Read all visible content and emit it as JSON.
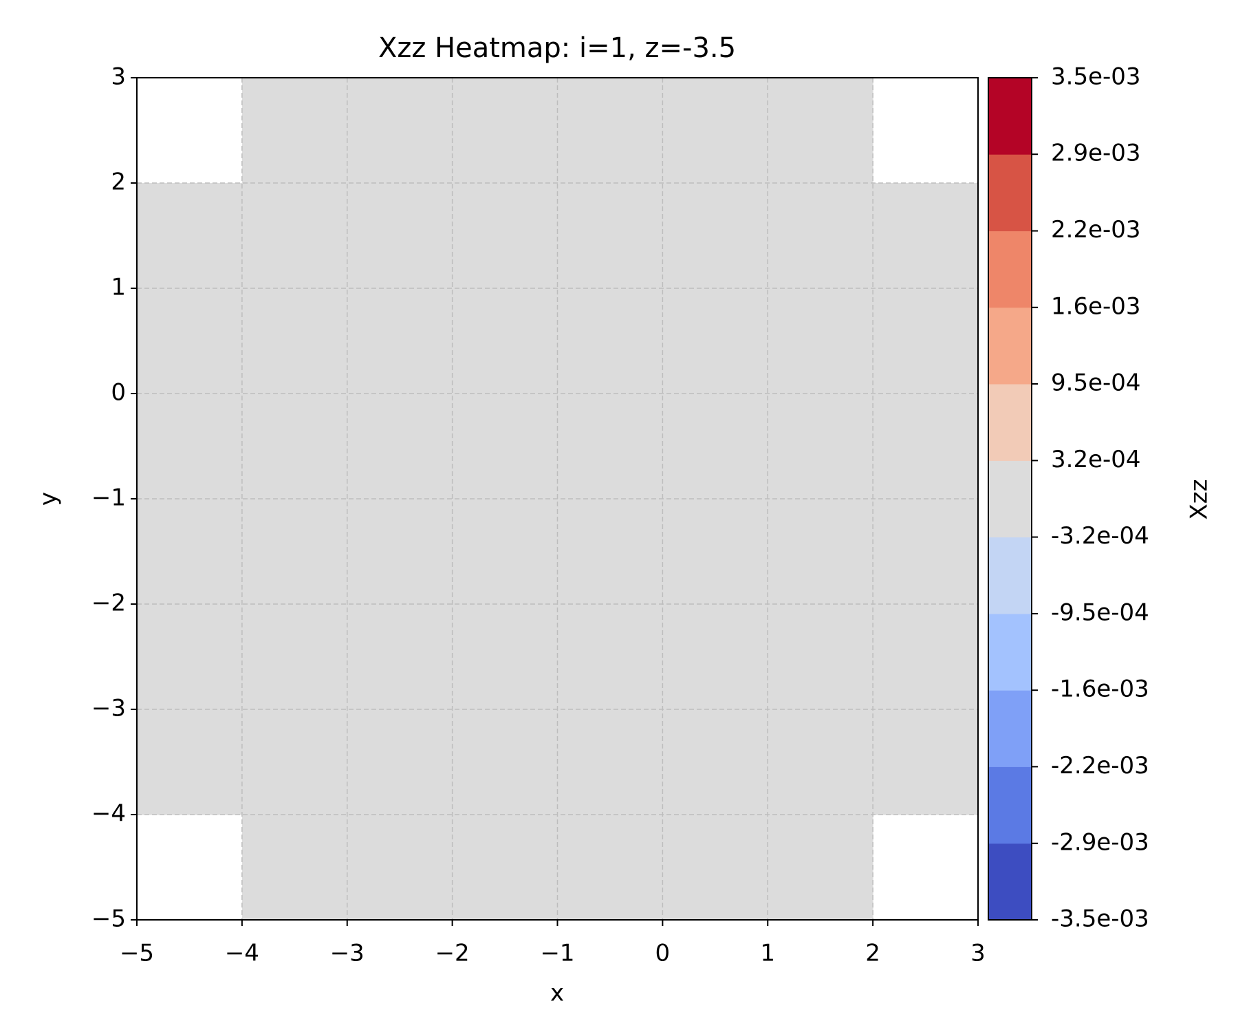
{
  "chart_data": {
    "type": "heatmap",
    "title": "Xzz Heatmap: i=1, z=-3.5",
    "x_label": "x",
    "y_label": "y",
    "x": [
      -5,
      -4,
      -3,
      -2,
      -1,
      0,
      1,
      2,
      3
    ],
    "y": [
      -5,
      -4,
      -3,
      -2,
      -1,
      0,
      1,
      2,
      3
    ],
    "values": [
      [
        null,
        0,
        0,
        0,
        0,
        0,
        0,
        null
      ],
      [
        0,
        0,
        0,
        0,
        0,
        0,
        0,
        0
      ],
      [
        0,
        0,
        0,
        0,
        0,
        0,
        0,
        0
      ],
      [
        0,
        0,
        0,
        0,
        0,
        0,
        0,
        0
      ],
      [
        0,
        0,
        0,
        0,
        0,
        0,
        0,
        0
      ],
      [
        0,
        0,
        0,
        0,
        0,
        0,
        0,
        0
      ],
      [
        0,
        0,
        0,
        0,
        0,
        0,
        0,
        0
      ],
      [
        null,
        0,
        0,
        0,
        0,
        0,
        0,
        null
      ]
    ],
    "xlim": [
      -5,
      3
    ],
    "ylim": [
      -5,
      3
    ],
    "xticks": [
      {
        "value": -5,
        "label": "−5"
      },
      {
        "value": -4,
        "label": "−4"
      },
      {
        "value": -3,
        "label": "−3"
      },
      {
        "value": -2,
        "label": "−2"
      },
      {
        "value": -1,
        "label": "−1"
      },
      0,
      1,
      2,
      3
    ],
    "yticks": [
      {
        "value": -5,
        "label": "−5"
      },
      {
        "value": -4,
        "label": "−4"
      },
      {
        "value": -3,
        "label": "−3"
      },
      {
        "value": -2,
        "label": "−2"
      },
      {
        "value": -1,
        "label": "−1"
      },
      0,
      1,
      2,
      3
    ],
    "grid": true,
    "colorbar": {
      "label": "Xzz",
      "lim": [
        -0.0035,
        0.0035
      ],
      "levels": [
        {
          "value": -0.0035,
          "label": "-3.5e-03"
        },
        {
          "value": -0.002864,
          "label": "-2.9e-03"
        },
        {
          "value": -0.002227,
          "label": "-2.2e-03"
        },
        {
          "value": -0.001591,
          "label": "-1.6e-03"
        },
        {
          "value": -0.000955,
          "label": "-9.5e-04"
        },
        {
          "value": -0.000318,
          "label": "-3.2e-04"
        },
        {
          "value": 0.000318,
          "label": "3.2e-04"
        },
        {
          "value": 0.000955,
          "label": "9.5e-04"
        },
        {
          "value": 0.001591,
          "label": "1.6e-03"
        },
        {
          "value": 0.002227,
          "label": "2.2e-03"
        },
        {
          "value": 0.002864,
          "label": "2.9e-03"
        },
        {
          "value": 0.0035,
          "label": "3.5e-03"
        }
      ],
      "colors": [
        "#3d4dc1",
        "#5b7ae4",
        "#7fa0f7",
        "#a3c2fe",
        "#c3d5f4",
        "#dcdcdc",
        "#f2cbb7",
        "#f5a889",
        "#ee8669",
        "#d75445",
        "#b40426"
      ]
    }
  }
}
